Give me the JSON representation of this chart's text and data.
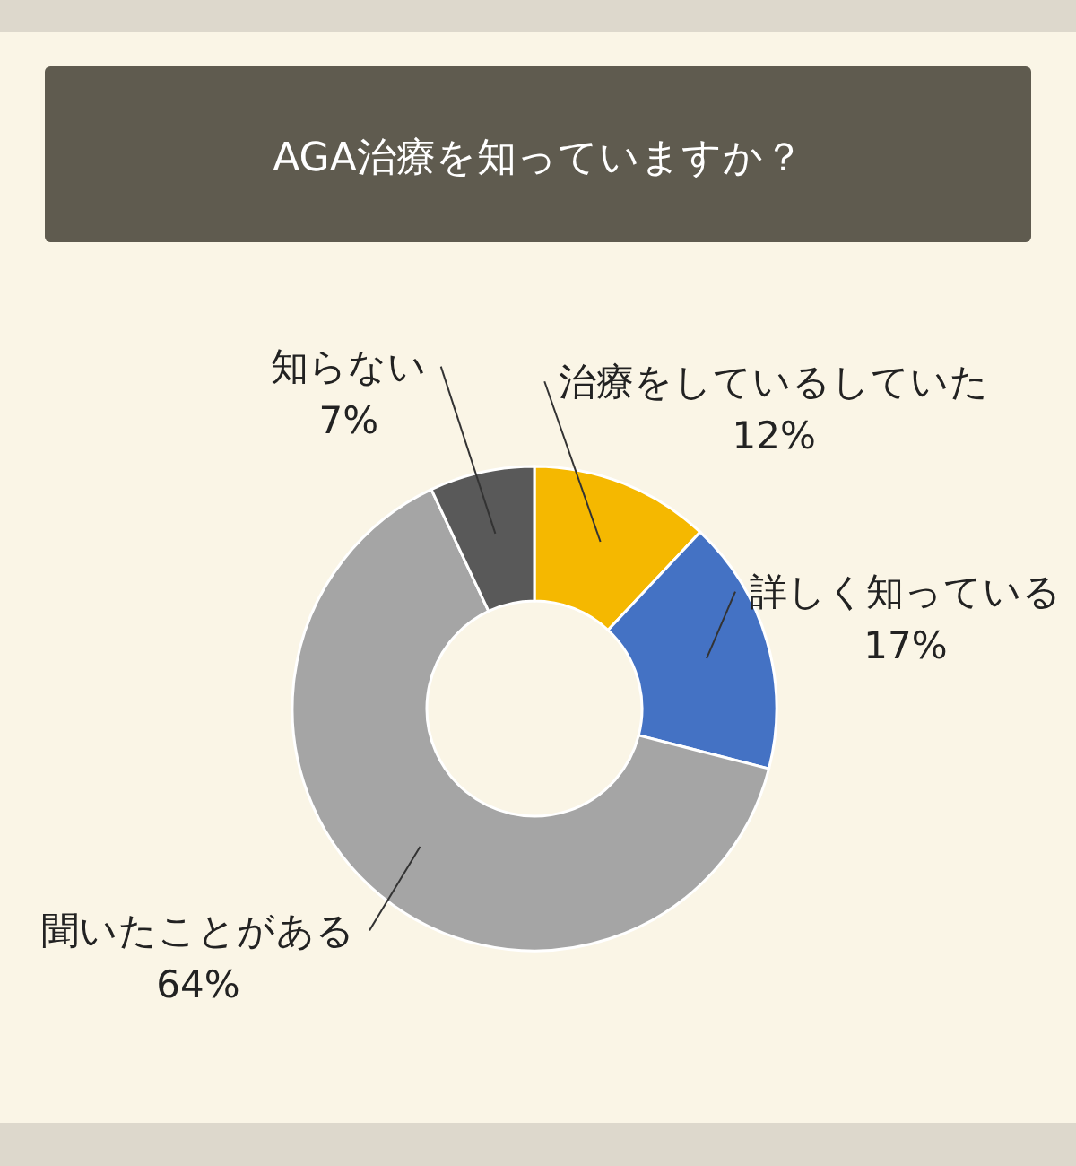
{
  "chart_data": {
    "type": "donut",
    "title": "AGA治療を知っていますか？",
    "categories": [
      "治療をしているしていた",
      "詳しく知っている",
      "聞いたことがある",
      "知らない"
    ],
    "values": [
      12,
      17,
      64,
      7
    ],
    "colors": [
      "#f5b800",
      "#4472c4",
      "#a5a5a5",
      "#595959"
    ],
    "value_labels": [
      "12%",
      "17%",
      "64%",
      "7%"
    ]
  }
}
